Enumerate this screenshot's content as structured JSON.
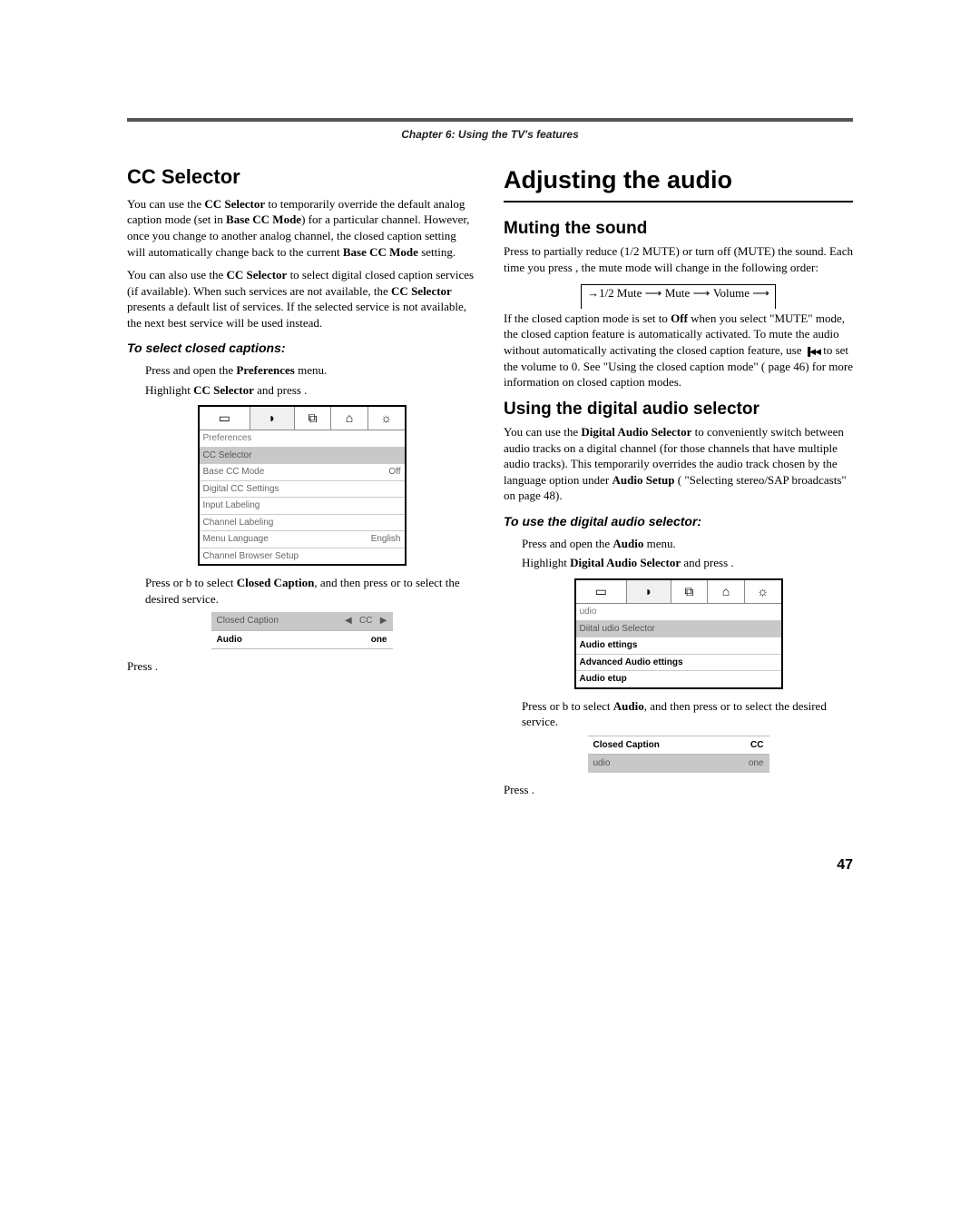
{
  "chapter_header": "Chapter 6: Using the TV's features",
  "left": {
    "h1": "CC Selector",
    "p1_a": "You can use the ",
    "p1_b": "CC Selector",
    "p1_c": " to temporarily override the default analog caption mode (set in ",
    "p1_d": "Base CC Mode",
    "p1_e": ") for a particular channel. However, once you change to another analog channel, the closed caption setting will automatically change back to the current ",
    "p1_f": "Base CC Mode",
    "p1_g": " setting.",
    "p2_a": "You can also use the ",
    "p2_b": "CC Selector",
    "p2_c": " to select digital closed caption services (if available). When such services are not available, the ",
    "p2_d": "CC Selector",
    "p2_e": " presents a default list of services. If the selected service is not available, the next best service will be used instead.",
    "proc": "To select closed captions:",
    "s1_a": "Press ",
    "s1_b": " and open the ",
    "s1_c": "Preferences",
    "s1_d": " menu.",
    "s2_a": "Highlight ",
    "s2_b": "CC Selector",
    "s2_c": " and press ",
    "s2_d": ".",
    "menu": {
      "title": "Preferences",
      "rows": [
        {
          "label": "CC Selector",
          "val": "",
          "sel": true
        },
        {
          "label": "Base CC Mode",
          "val": "Off"
        },
        {
          "label": "Digital CC Settings",
          "val": ""
        },
        {
          "label": "Input Labeling",
          "val": ""
        },
        {
          "label": "Channel Labeling",
          "val": ""
        },
        {
          "label": "Menu Language",
          "val": "English"
        },
        {
          "label": "Channel Browser Setup",
          "val": ""
        }
      ]
    },
    "s3_a": "Press ",
    "s3_b": " or b to select ",
    "s3_c": "Closed Caption",
    "s3_d": ", and then press ",
    "s3_e": " or ",
    "s3_f": " to select the desired service.",
    "snippet": {
      "r1_label": "Closed Caption",
      "r1_mid": "◀",
      "r1_val": "CC",
      "r1_end": "▶",
      "r2_label": "Audio",
      "r2_val": "one"
    },
    "s4": "Press ",
    "s4b": "."
  },
  "right": {
    "h1": "Adjusting the audio",
    "sub1": "Muting the sound",
    "p1_a": "Press ",
    "p1_b": " to partially reduce (1/2 MUTE) or turn off (MUTE) the sound. Each time you press ",
    "p1_c": ", the mute mode will change in the following order:",
    "flow": {
      "a": "1/2 Mute",
      "b": "Mute",
      "c": "Volume"
    },
    "p2_a": "If the closed caption mode is set to ",
    "p2_b": "Off",
    "p2_c": " when you select \"MUTE\" mode, the closed caption feature is automatically activated. To mute the audio without automatically activating the closed caption feature, use ",
    "p2_d": " to set the volume to 0. See \"Using the closed caption mode\" (",
    "p2_e": " page 46) for more information on closed caption modes.",
    "sub2": "Using the digital audio selector",
    "p3_a": "You can use the ",
    "p3_b": "Digital Audio Selector",
    "p3_c": " to conveniently switch between audio tracks on a digital channel (for those channels that have multiple audio tracks). This temporarily overrides the audio track chosen by the language option under ",
    "p3_d": "Audio Setup",
    "p3_e": " (",
    "p3_f": " \"Selecting stereo/SAP broadcasts\" on page 48).",
    "proc": "To use the digital audio selector:",
    "s1_a": "Press ",
    "s1_b": " and open the ",
    "s1_c": "Audio",
    "s1_d": " menu.",
    "s2_a": "Highlight ",
    "s2_b": "Digital Audio Selector",
    "s2_c": " and press ",
    "s2_d": ".",
    "menu": {
      "title": "udio",
      "rows": [
        {
          "label": "Diital udio Selector",
          "val": "",
          "sel": true
        },
        {
          "label": "Audio ettings",
          "val": "",
          "bold": true
        },
        {
          "label": "Advanced Audio ettings",
          "val": "",
          "bold": true
        },
        {
          "label": "Audio etup",
          "val": "",
          "bold": true
        }
      ]
    },
    "s3_a": "Press ",
    "s3_b": " or b to select ",
    "s3_c": "Audio",
    "s3_d": ", and then press ",
    "s3_e": " or ",
    "s3_f": " to select the desired service.",
    "snippet": {
      "r1_label": "Closed Caption",
      "r1_val": "CC",
      "r2_label": "udio",
      "r2_val": "one"
    },
    "s4": "Press ",
    "s4b": "."
  },
  "page_num": "47",
  "tab_icons": [
    "▭",
    "◗",
    "⧉",
    "⌂",
    "☼"
  ],
  "colors": {
    "rule": "#555555",
    "sel_bg": "#c8c8c8",
    "grey_text": "#666666"
  }
}
